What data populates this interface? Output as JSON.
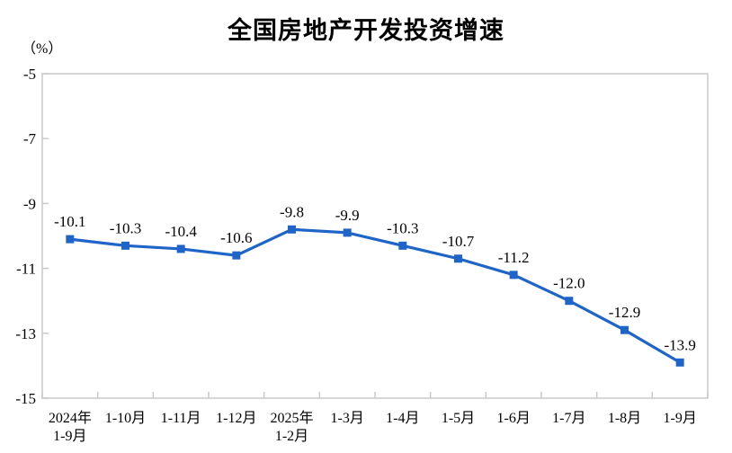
{
  "chart_data": {
    "type": "line",
    "title": "全国房地产开发投资增速",
    "unit_label": "（%）",
    "categories": [
      [
        "2024年",
        "1-9月"
      ],
      [
        "1-10月"
      ],
      [
        "1-11月"
      ],
      [
        "1-12月"
      ],
      [
        "2025年",
        "1-2月"
      ],
      [
        "1-3月"
      ],
      [
        "1-4月"
      ],
      [
        "1-5月"
      ],
      [
        "1-6月"
      ],
      [
        "1-7月"
      ],
      [
        "1-8月"
      ],
      [
        "1-9月"
      ]
    ],
    "values": [
      -10.1,
      -10.3,
      -10.4,
      -10.6,
      -9.8,
      -9.9,
      -10.3,
      -10.7,
      -11.2,
      -12.0,
      -12.9,
      -13.9
    ],
    "point_labels": [
      "-10.1",
      "-10.3",
      "-10.4",
      "-10.6",
      "-9.8",
      "-9.9",
      "-10.3",
      "-10.7",
      "-11.2",
      "-12.0",
      "-12.9",
      "-13.9"
    ],
    "ylim": [
      -15,
      -5
    ],
    "yticks": [
      -5,
      -7,
      -9,
      -11,
      -13,
      -15
    ],
    "ytick_labels": [
      "-5",
      "-7",
      "-9",
      "-11",
      "-13",
      "-15"
    ],
    "grid": false,
    "legend": "none",
    "line_color": "#1f64c8",
    "axis_color": "#c9c9c9",
    "text_color": "#000000"
  }
}
